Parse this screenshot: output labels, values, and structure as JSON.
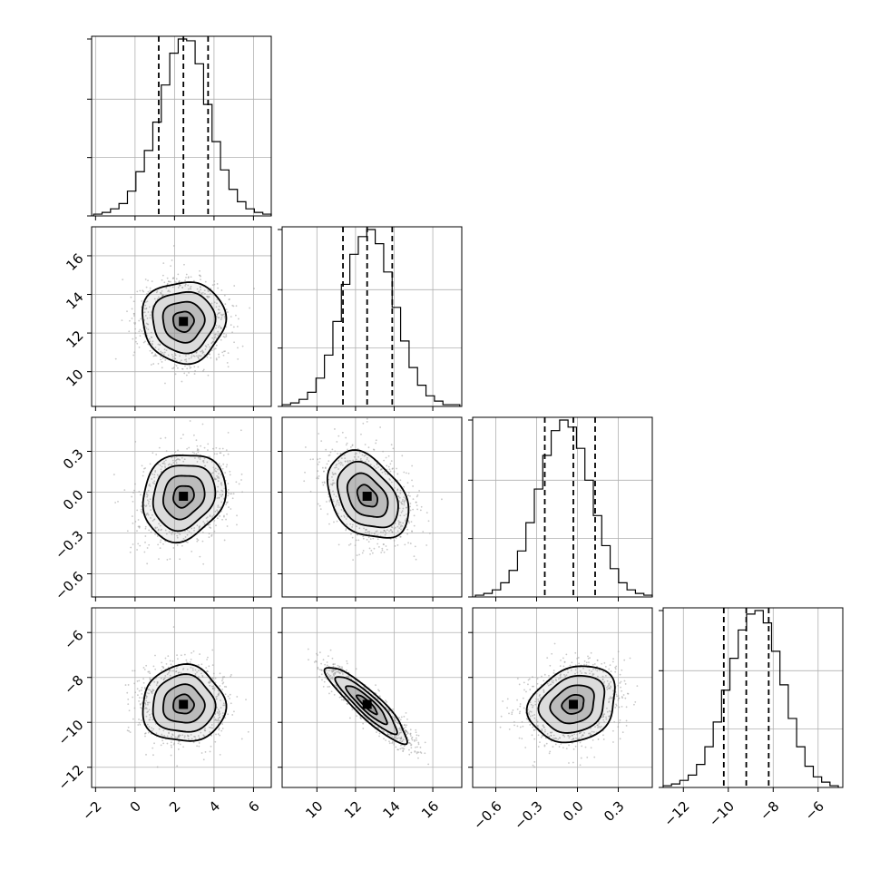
{
  "chart_data": {
    "type": "corner",
    "title": "",
    "parameters": [
      {
        "ticks": [
          -2,
          0,
          2,
          4,
          6
        ],
        "tick_labels": [
          "−2",
          "0",
          "2",
          "4",
          "6"
        ],
        "range": [
          -2.2,
          6.9
        ]
      },
      {
        "ticks": [
          10,
          12,
          14,
          16
        ],
        "tick_labels": [
          "10",
          "12",
          "14",
          "16"
        ],
        "range": [
          8.2,
          17.5
        ]
      },
      {
        "ticks": [
          -0.6,
          -0.3,
          0.0,
          0.3
        ],
        "tick_labels": [
          "−0.6",
          "−0.3",
          "0.0",
          "0.3"
        ],
        "range": [
          -0.77,
          0.55
        ]
      },
      {
        "ticks": [
          -12,
          -10,
          -8,
          -6
        ],
        "tick_labels": [
          "−12",
          "−10",
          "−8",
          "−6"
        ],
        "range": [
          -12.9,
          -4.9
        ]
      }
    ],
    "histograms": [
      {
        "parameter": 0,
        "quantiles": [
          1.2,
          2.45,
          3.7
        ],
        "bin_edges_range": [
          -2.1,
          6.9
        ],
        "counts": [
          1,
          2,
          4,
          7,
          14,
          25,
          37,
          53,
          74,
          92,
          100,
          99,
          86,
          63,
          42,
          26,
          15,
          8,
          4,
          2,
          1
        ]
      },
      {
        "parameter": 1,
        "quantiles": [
          11.35,
          12.6,
          13.9
        ],
        "bin_edges_range": [
          8.2,
          17.4
        ],
        "counts": [
          1,
          2,
          4,
          8,
          16,
          29,
          48,
          69,
          86,
          96,
          100,
          92,
          76,
          56,
          37,
          22,
          12,
          6,
          3,
          1,
          1
        ]
      },
      {
        "parameter": 2,
        "quantiles": [
          -0.24,
          -0.03,
          0.13
        ],
        "bin_edges_range": [
          -0.75,
          0.55
        ],
        "counts": [
          1,
          2,
          4,
          8,
          15,
          26,
          42,
          61,
          80,
          94,
          100,
          96,
          84,
          66,
          46,
          29,
          16,
          8,
          4,
          2,
          1
        ]
      },
      {
        "parameter": 3,
        "quantiles": [
          -10.2,
          -9.2,
          -8.2
        ],
        "bin_edges_range": [
          -12.9,
          -5.1
        ],
        "counts": [
          1,
          2,
          4,
          7,
          13,
          23,
          37,
          55,
          73,
          89,
          98,
          100,
          93,
          77,
          58,
          39,
          23,
          12,
          6,
          3,
          1
        ]
      }
    ],
    "contours": [
      {
        "x_param": 0,
        "y_param": 1,
        "center": [
          2.45,
          12.6
        ],
        "sigma": [
          1.05,
          1.05
        ],
        "rho": 0.0
      },
      {
        "x_param": 0,
        "y_param": 2,
        "center": [
          2.45,
          -0.03
        ],
        "sigma": [
          1.05,
          0.16
        ],
        "rho": 0.15
      },
      {
        "x_param": 1,
        "y_param": 2,
        "center": [
          12.6,
          -0.03
        ],
        "sigma": [
          1.05,
          0.16
        ],
        "rho": -0.35
      },
      {
        "x_param": 0,
        "y_param": 3,
        "center": [
          2.45,
          -9.2
        ],
        "sigma": [
          1.05,
          0.85
        ],
        "rho": 0.0
      },
      {
        "x_param": 1,
        "y_param": 3,
        "center": [
          12.6,
          -9.2
        ],
        "sigma": [
          1.05,
          0.85
        ],
        "rho": -0.9
      },
      {
        "x_param": 2,
        "y_param": 3,
        "center": [
          -0.03,
          -9.2
        ],
        "sigma": [
          0.16,
          0.85
        ],
        "rho": 0.2
      }
    ],
    "contour_levels_sigma": [
      0.5,
      1.0,
      1.5,
      2.0
    ],
    "grid": true,
    "colors": {
      "line": "#000000",
      "grid": "#b0b0b0",
      "fill": "#808080",
      "scatter": "#9a9a9a"
    }
  }
}
